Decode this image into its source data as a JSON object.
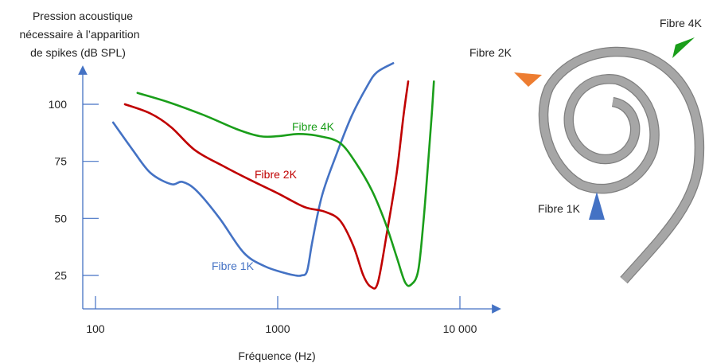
{
  "chart_data": {
    "type": "line",
    "ylabel": [
      "Pression acoustique",
      "nécessaire à l’apparition",
      "de spikes (dB SPL)"
    ],
    "xlabel": "Fréquence (Hz)",
    "x_scale": "log",
    "xlim": [
      100,
      10000
    ],
    "ylim": [
      15,
      115
    ],
    "x_ticks": [
      100,
      1000,
      10000
    ],
    "x_tick_labels": [
      "100",
      "1000",
      "10 000"
    ],
    "y_ticks": [
      25,
      50,
      75,
      100
    ],
    "y_tick_labels": [
      "25",
      "50",
      "75",
      "100"
    ],
    "grid": false,
    "series": [
      {
        "name": "Fibre 1K",
        "color": "#4472C4",
        "points": [
          [
            125,
            92
          ],
          [
            160,
            80
          ],
          [
            200,
            70
          ],
          [
            260,
            65
          ],
          [
            300,
            66
          ],
          [
            360,
            62
          ],
          [
            480,
            50
          ],
          [
            650,
            35
          ],
          [
            850,
            29
          ],
          [
            1100,
            26
          ],
          [
            1250,
            25
          ],
          [
            1350,
            25
          ],
          [
            1450,
            27
          ],
          [
            1550,
            40
          ],
          [
            1750,
            60
          ],
          [
            2100,
            78
          ],
          [
            2550,
            95
          ],
          [
            3100,
            108
          ],
          [
            3500,
            114
          ],
          [
            4300,
            118
          ]
        ]
      },
      {
        "name": "Fibre 2K",
        "color": "#C00000",
        "points": [
          [
            145,
            100
          ],
          [
            200,
            96
          ],
          [
            260,
            90
          ],
          [
            350,
            80
          ],
          [
            500,
            73
          ],
          [
            700,
            67
          ],
          [
            1000,
            61
          ],
          [
            1400,
            55
          ],
          [
            1800,
            53
          ],
          [
            2200,
            49
          ],
          [
            2600,
            38
          ],
          [
            2950,
            25
          ],
          [
            3250,
            20
          ],
          [
            3550,
            22
          ],
          [
            4000,
            45
          ],
          [
            4500,
            70
          ],
          [
            4900,
            95
          ],
          [
            5200,
            110
          ]
        ]
      },
      {
        "name": "Fibre 4K",
        "color": "#1A9E1A",
        "points": [
          [
            170,
            105
          ],
          [
            250,
            101
          ],
          [
            400,
            95
          ],
          [
            600,
            89
          ],
          [
            800,
            86
          ],
          [
            1000,
            86
          ],
          [
            1300,
            87
          ],
          [
            1700,
            86
          ],
          [
            2200,
            83
          ],
          [
            2700,
            74
          ],
          [
            3300,
            62
          ],
          [
            3900,
            48
          ],
          [
            4500,
            33
          ],
          [
            5000,
            22
          ],
          [
            5400,
            21
          ],
          [
            5900,
            27
          ],
          [
            6300,
            48
          ],
          [
            6700,
            75
          ],
          [
            7000,
            95
          ],
          [
            7200,
            110
          ]
        ]
      }
    ],
    "curve_labels": [
      "Fibre 1K",
      "Fibre 2K",
      "Fibre 4K"
    ]
  },
  "cochlea": {
    "markers": [
      {
        "label": "Fibre 2K",
        "color": "#ED7D31"
      },
      {
        "label": "Fibre 4K",
        "color": "#1A9E1A"
      },
      {
        "label": "Fibre 1K",
        "color": "#4472C4"
      }
    ],
    "spiral_color": "#A6A6A6",
    "spiral_stroke": "#7F7F7F"
  }
}
